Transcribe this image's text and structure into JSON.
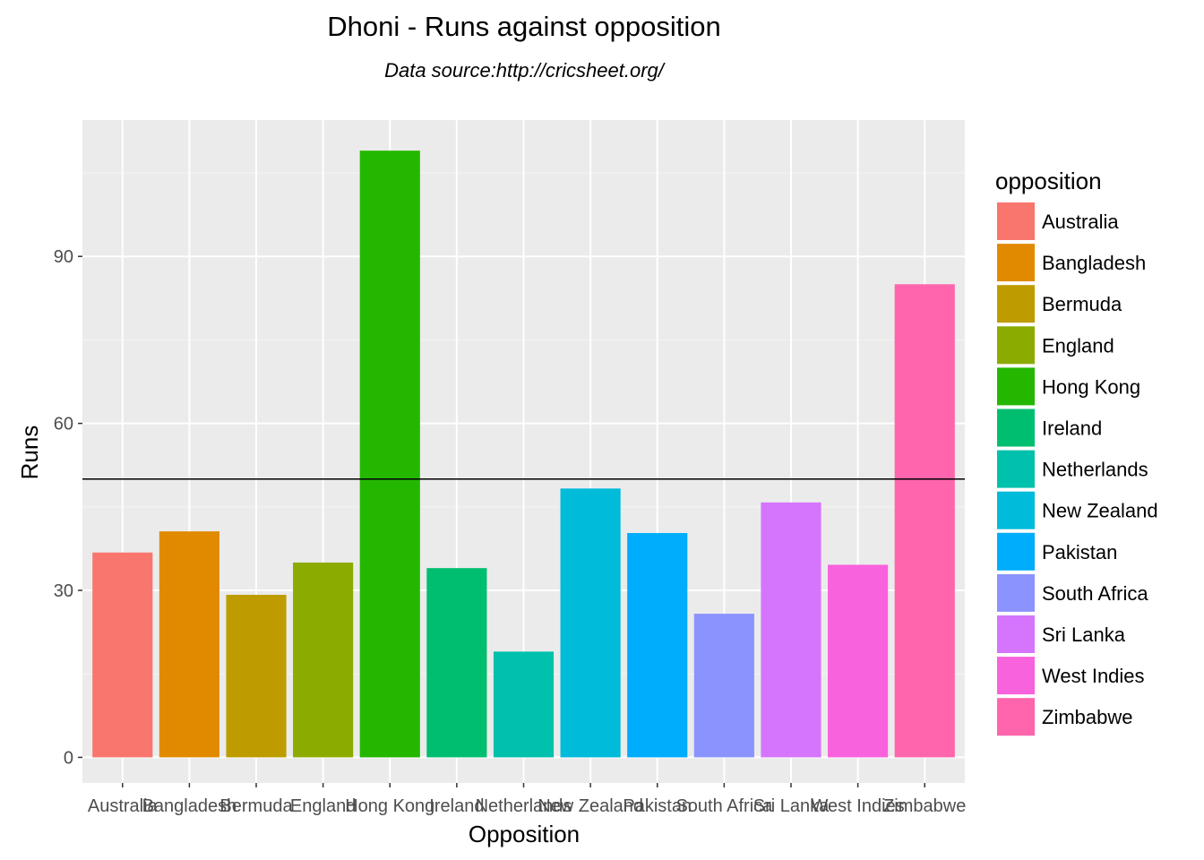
{
  "chart_data": {
    "type": "bar",
    "title": "Dhoni - Runs against opposition",
    "subtitle": "Data source:http://cricsheet.org/",
    "xlabel": "Opposition",
    "ylabel": "Runs",
    "categories": [
      "Australia",
      "Bangladesh",
      "Bermuda",
      "England",
      "Hong Kong",
      "Ireland",
      "Netherlands",
      "New Zealand",
      "Pakistan",
      "South Africa",
      "Sri Lanka",
      "West Indies",
      "Zimbabwe"
    ],
    "values": [
      36.8,
      40.6,
      29.2,
      35.0,
      109.0,
      34.0,
      19.0,
      48.3,
      40.3,
      25.8,
      45.8,
      34.6,
      85.0
    ],
    "colors": [
      "#F8766D",
      "#E18A00",
      "#BE9C00",
      "#8CAB00",
      "#24B700",
      "#00BE70",
      "#00C1AB",
      "#00BBDA",
      "#00ACFC",
      "#8B93FF",
      "#D575FE",
      "#F962DD",
      "#FF65AC"
    ],
    "yticks": [
      0,
      30,
      60,
      90
    ],
    "ylim": [
      -4.6,
      114.5
    ],
    "hline": 50,
    "grid": true,
    "legend": {
      "title": "opposition",
      "position": "right"
    }
  }
}
